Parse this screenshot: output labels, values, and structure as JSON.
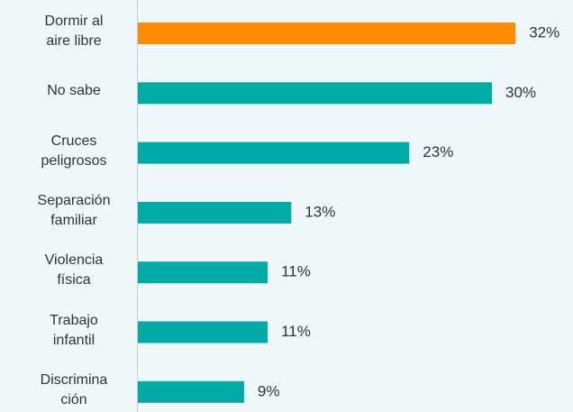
{
  "chart_data": {
    "type": "barh",
    "categories": [
      "Dormir al\naire libre",
      "No sabe",
      "Cruces\npeligrosos",
      "Separación\nfamiliar",
      "Violencia\nfísica",
      "Trabajo\ninfantil",
      "Discrimina\nción"
    ],
    "values": [
      32,
      30,
      23,
      13,
      11,
      11,
      9
    ],
    "value_labels": [
      "32%",
      "30%",
      "23%",
      "13%",
      "11%",
      "11%",
      "9%"
    ],
    "colors": [
      "#ff8c00",
      "#00aaa6",
      "#00aaa6",
      "#00aaa6",
      "#00aaa6",
      "#00aaa6",
      "#00aaa6"
    ]
  }
}
